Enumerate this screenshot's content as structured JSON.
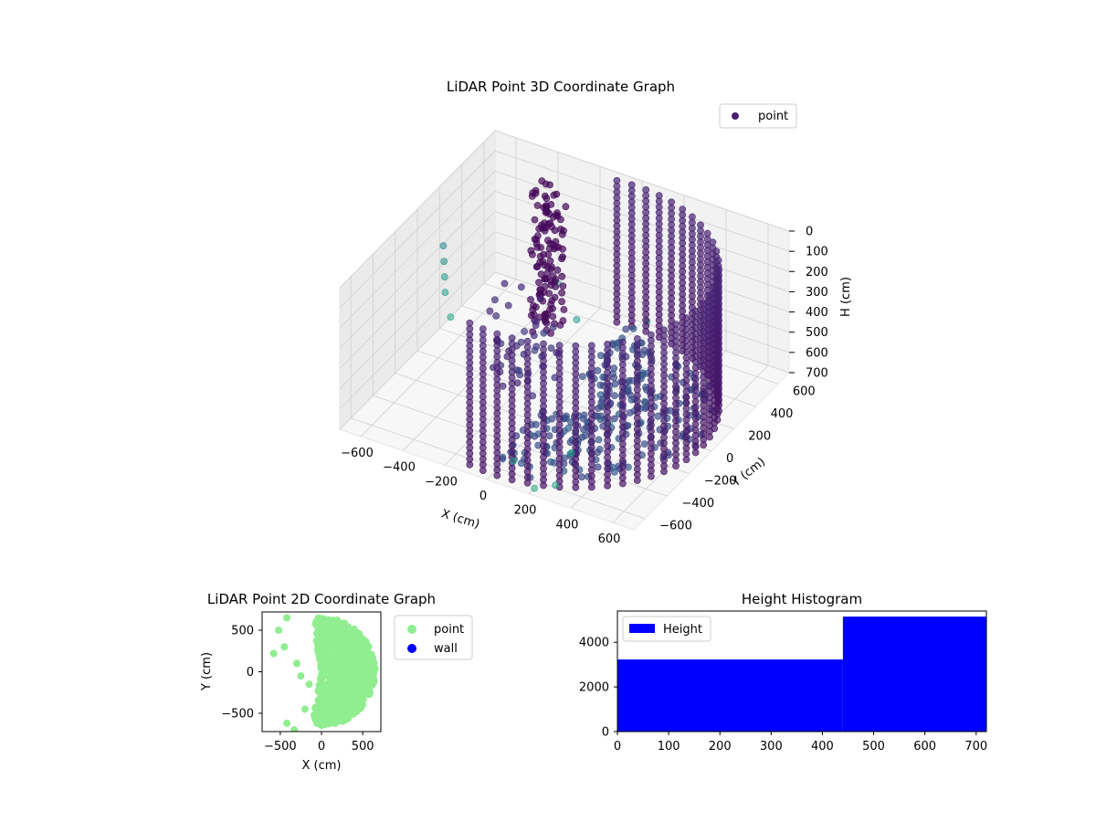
{
  "chart_data": [
    {
      "type": "scatter",
      "projection": "3d",
      "title": "LiDAR Point 3D Coordinate Graph",
      "xlabel": "X (cm)",
      "ylabel": "Y (cm)",
      "zlabel": "H (cm)",
      "xticks": [
        "−600",
        "−400",
        "−200",
        "0",
        "200",
        "400",
        "600"
      ],
      "yticks": [
        "−600",
        "−400",
        "−200",
        "0",
        "200",
        "400",
        "600"
      ],
      "zticks": [
        "0",
        "100",
        "200",
        "300",
        "400",
        "500",
        "600",
        "700"
      ],
      "xlim": [
        -700,
        700
      ],
      "ylim": [
        -700,
        700
      ],
      "zlim": [
        700,
        0
      ],
      "zaxis_inverted": true,
      "legend": {
        "position": "top-right",
        "entries": [
          {
            "label": "point",
            "color": "#481f70"
          }
        ]
      },
      "colormap": "viridis (by height)",
      "grid": true,
      "series": [
        {
          "name": "point",
          "description_of_shape": "dense semicircular curtain of points (radius ~650 cm) spanning heights 0–700 cm, plus a tall cluster near x=-300,y=400 and scattered outliers",
          "wall": {
            "radius": 650,
            "angle_start_deg": -100,
            "angle_end_deg": 100,
            "h_min": 0,
            "h_max": 700
          },
          "cluster": {
            "x": -300,
            "y": 420,
            "h_min": 0,
            "h_max": 700
          },
          "outliers": [
            {
              "x": -700,
              "y": 300,
              "h": 700
            },
            {
              "x": -700,
              "y": 250,
              "h": 550
            },
            {
              "x": -650,
              "y": 150,
              "h": 400
            },
            {
              "x": -600,
              "y": 50,
              "h": 250
            },
            {
              "x": -550,
              "y": -50,
              "h": 100
            },
            {
              "x": -400,
              "y": 700,
              "h": 650
            },
            {
              "x": 50,
              "y": 650,
              "h": 650
            },
            {
              "x": -100,
              "y": 300,
              "h": 500
            },
            {
              "x": 200,
              "y": -650,
              "h": 700
            },
            {
              "x": 300,
              "y": -650,
              "h": 650
            },
            {
              "x": 100,
              "y": -650,
              "h": 600
            },
            {
              "x": 350,
              "y": -600,
              "h": 500
            },
            {
              "x": 450,
              "y": -450,
              "h": 400
            }
          ]
        }
      ]
    },
    {
      "type": "scatter",
      "title": "LiDAR Point 2D Coordinate Graph",
      "xlabel": "X (cm)",
      "ylabel": "Y (cm)",
      "xlim": [
        -720,
        720
      ],
      "ylim": [
        -720,
        720
      ],
      "xticks": [
        "−500",
        "0",
        "500"
      ],
      "xtick_values": [
        -500,
        0,
        500
      ],
      "yticks": [
        "−500",
        "0",
        "500"
      ],
      "ytick_values": [
        -500,
        0,
        500
      ],
      "legend": {
        "position": "outside-right",
        "entries": [
          {
            "label": "point",
            "color": "#90ee90"
          },
          {
            "label": "wall",
            "color": "#0000ff"
          }
        ]
      },
      "series": [
        {
          "name": "point",
          "color": "#90ee90",
          "description_of_shape": "filled half-disc of radius ~650 cm on the positive-x side with ragged left edge",
          "half_disc": {
            "radius": 650,
            "angle_start_deg": -100,
            "angle_end_deg": 100
          },
          "extra_points": [
            {
              "x": -450,
              "y": 300
            },
            {
              "x": -520,
              "y": 500
            },
            {
              "x": -420,
              "y": 650
            },
            {
              "x": -580,
              "y": 220
            },
            {
              "x": -300,
              "y": 100
            },
            {
              "x": -250,
              "y": -50
            },
            {
              "x": -150,
              "y": -150
            },
            {
              "x": -420,
              "y": -620
            },
            {
              "x": -330,
              "y": -700
            },
            {
              "x": -200,
              "y": -450
            }
          ]
        },
        {
          "name": "wall",
          "color": "#0000ff",
          "points": []
        }
      ]
    },
    {
      "type": "bar",
      "subtype": "histogram",
      "title": "Height Histogram",
      "xlim": [
        0,
        720
      ],
      "ylim": [
        0,
        5400
      ],
      "xticks": [
        "0",
        "100",
        "200",
        "300",
        "400",
        "500",
        "600",
        "700"
      ],
      "xtick_values": [
        0,
        100,
        200,
        300,
        400,
        500,
        600,
        700
      ],
      "yticks": [
        "0",
        "2000",
        "4000"
      ],
      "ytick_values": [
        0,
        2000,
        4000
      ],
      "bins": [
        {
          "start": 0,
          "end": 440,
          "count": 3230
        },
        {
          "start": 440,
          "end": 720,
          "count": 5150
        }
      ],
      "color": "#0000ff",
      "legend": {
        "position": "top-left",
        "entries": [
          {
            "label": "Height",
            "color": "#0000ff"
          }
        ]
      }
    }
  ]
}
